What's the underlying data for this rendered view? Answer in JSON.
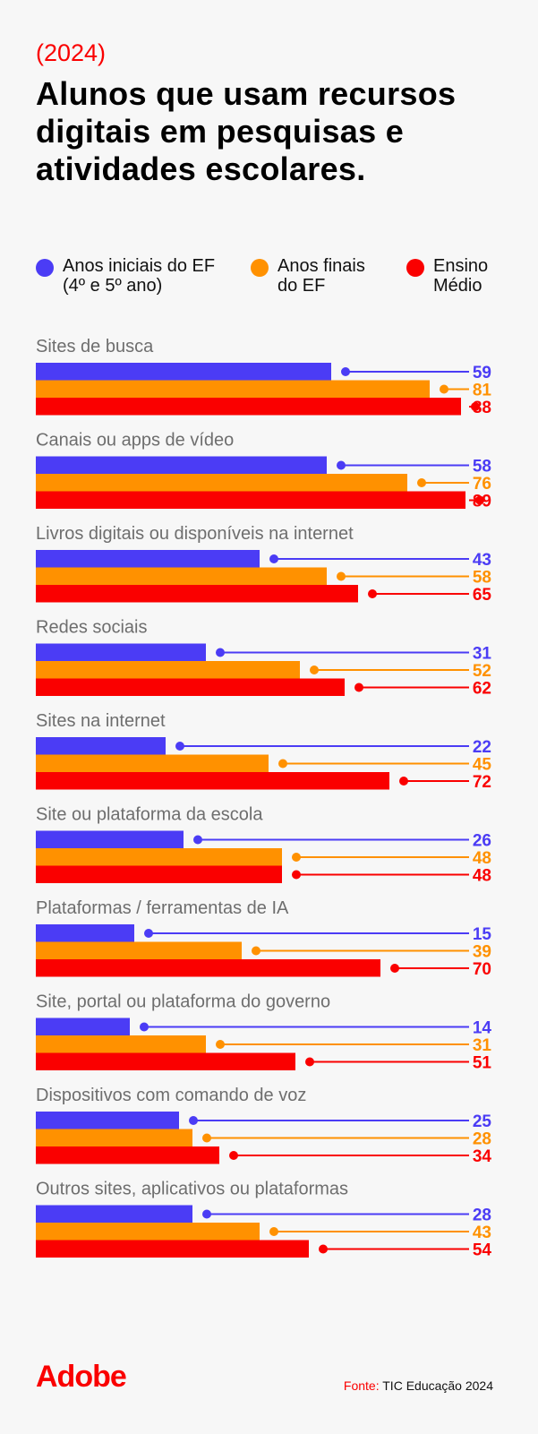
{
  "header": {
    "year": "(2024)",
    "title": "Alunos que usam recursos digitais em pesquisas e atividades escolares."
  },
  "footer": {
    "logo": "Adobe",
    "source_label": "Fonte:",
    "source_text": "TIC Educação 2024"
  },
  "chart_data": {
    "type": "bar",
    "orientation": "horizontal",
    "grid": false,
    "legend_placement": "top",
    "categories": [
      "Sites de busca",
      "Canais ou apps de vídeo",
      "Livros digitais ou disponíveis na internet",
      "Redes sociais",
      "Sites na internet",
      "Site ou plataforma da escola",
      "Plataformas / ferramentas de IA",
      "Site, portal ou plataforma do governo",
      "Dispositivos com comando de voz",
      "Outros sites, aplicativos ou plataformas"
    ],
    "series": [
      {
        "name": "Anos iniciais do EF\n(4º e 5º ano)",
        "color": "#4b3cf5",
        "values": [
          59,
          58,
          43,
          31,
          22,
          26,
          15,
          14,
          25,
          28
        ]
      },
      {
        "name": "Anos finais\ndo EF",
        "color": "#ff9100",
        "values": [
          81,
          76,
          58,
          52,
          45,
          48,
          39,
          31,
          28,
          43
        ]
      },
      {
        "name": "Ensino\nMédio",
        "color": "#fa0000",
        "values": [
          88,
          89,
          65,
          62,
          72,
          48,
          70,
          51,
          34,
          54
        ]
      }
    ],
    "xlim": [
      0,
      100
    ]
  }
}
